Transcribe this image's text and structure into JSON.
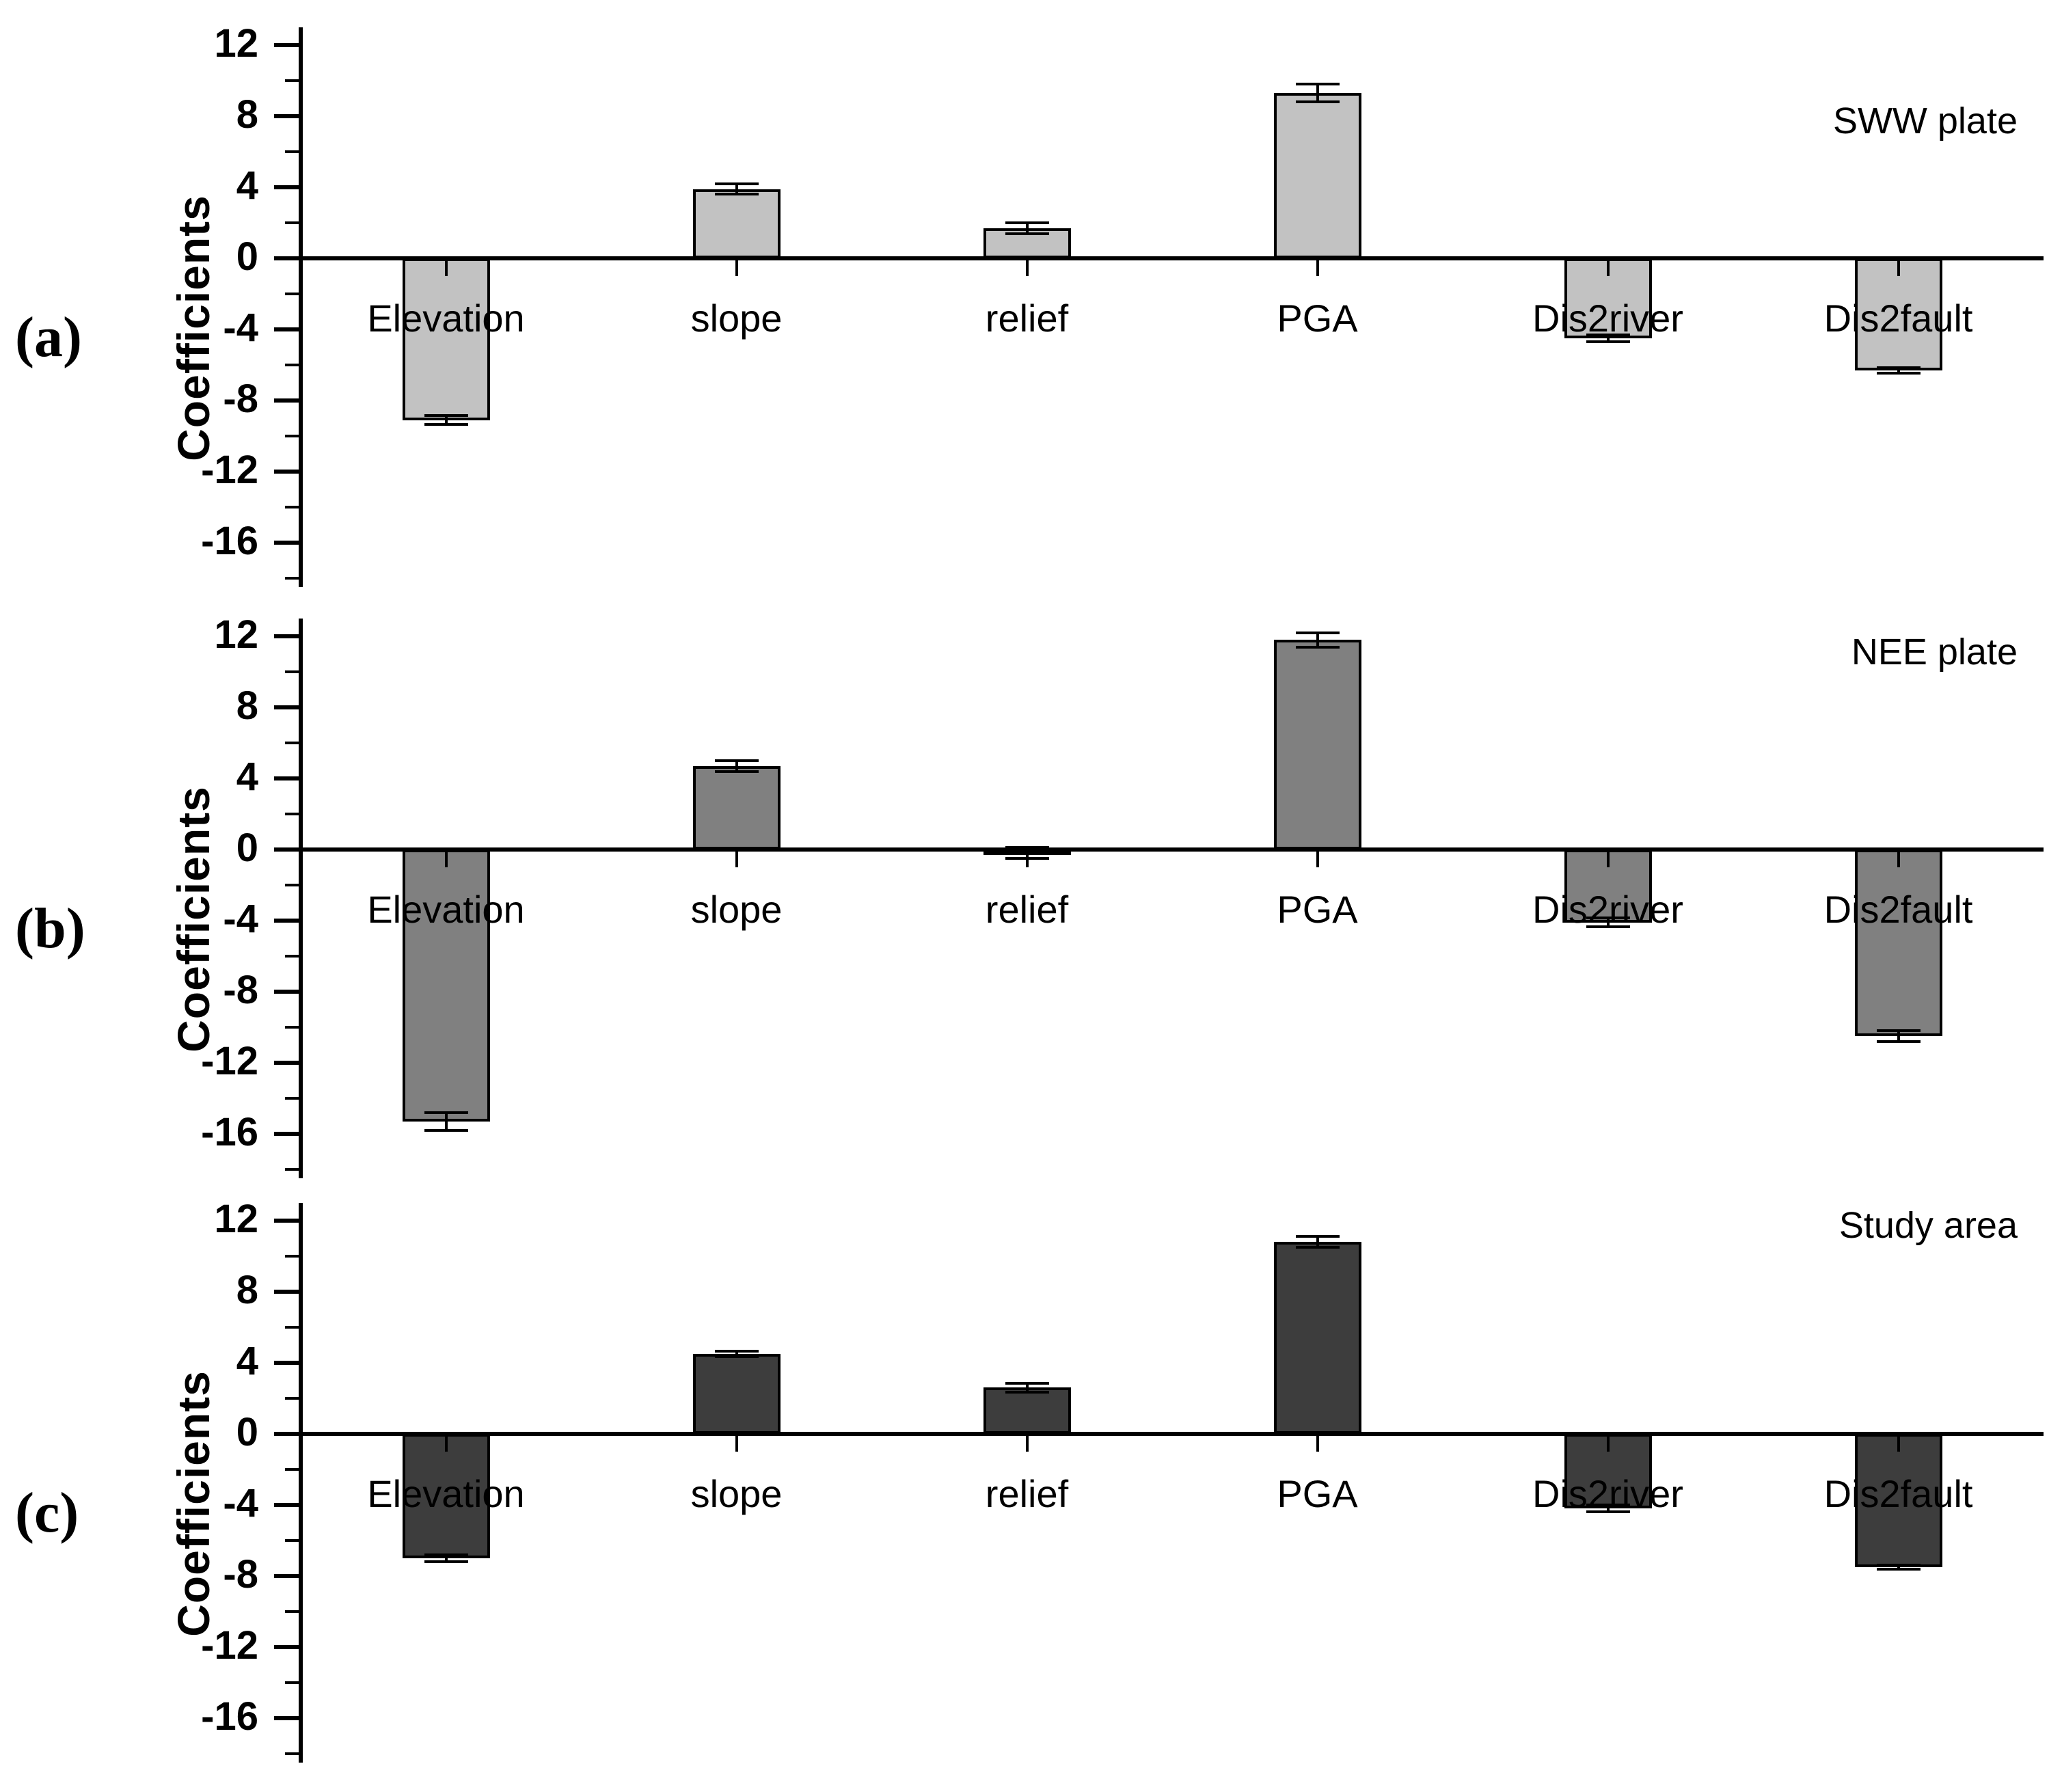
{
  "y_axis": {
    "label": "Coefficients",
    "major_tick_labels": [
      "12",
      "8",
      "4",
      "0",
      "-4",
      "-8",
      "-12",
      "-16"
    ]
  },
  "categories": [
    "Elevation",
    "slope",
    "relief",
    "PGA",
    "Dis2river",
    "Dis2fault"
  ],
  "panel_letters": [
    "(a)",
    "(b)",
    "(c)"
  ],
  "chart_data": [
    {
      "type": "bar",
      "panel_label": "(a)",
      "title": "SWW plate",
      "ylabel": "Coefficients",
      "categories": [
        "Elevation",
        "slope",
        "relief",
        "PGA",
        "Dis2river",
        "Dis2fault"
      ],
      "values": [
        -9.1,
        3.9,
        1.7,
        9.3,
        -4.5,
        -6.3
      ],
      "errors": [
        0.25,
        0.3,
        0.3,
        0.5,
        0.2,
        0.15
      ],
      "bar_color": "#c2c2c2",
      "ylim": [
        -18.5,
        13
      ],
      "y_major_ticks": [
        12,
        8,
        4,
        0,
        -4,
        -8,
        -12,
        -16
      ],
      "y_minor_ticks": [
        10,
        6,
        2,
        -2,
        -6,
        -10,
        -14,
        -18
      ],
      "grid": false,
      "legend": false
    },
    {
      "type": "bar",
      "panel_label": "(b)",
      "title": "NEE plate",
      "ylabel": "Coefficients",
      "categories": [
        "Elevation",
        "slope",
        "relief",
        "PGA",
        "Dis2river",
        "Dis2fault"
      ],
      "values": [
        -15.3,
        4.7,
        -0.2,
        11.8,
        -4.1,
        -10.5
      ],
      "errors": [
        0.5,
        0.3,
        0.3,
        0.4,
        0.25,
        0.3
      ],
      "bar_color": "#808080",
      "ylim": [
        -18.5,
        13
      ],
      "y_major_ticks": [
        12,
        8,
        4,
        0,
        -4,
        -8,
        -12,
        -16
      ],
      "y_minor_ticks": [
        10,
        6,
        2,
        -2,
        -6,
        -10,
        -14,
        -18
      ],
      "grid": false,
      "legend": false
    },
    {
      "type": "bar",
      "panel_label": "(c)",
      "title": "Study area",
      "ylabel": "Coefficients",
      "categories": [
        "Elevation",
        "slope",
        "relief",
        "PGA",
        "Dis2river",
        "Dis2fault"
      ],
      "values": [
        -7.0,
        4.5,
        2.6,
        10.8,
        -4.2,
        -7.5
      ],
      "errors": [
        0.2,
        0.15,
        0.25,
        0.3,
        0.2,
        0.1
      ],
      "bar_color": "#3d3d3d",
      "ylim": [
        -18.5,
        13
      ],
      "y_major_ticks": [
        12,
        8,
        4,
        0,
        -4,
        -8,
        -12,
        -16
      ],
      "y_minor_ticks": [
        10,
        6,
        2,
        -2,
        -6,
        -10,
        -14,
        -18
      ],
      "grid": false,
      "legend": false
    }
  ]
}
